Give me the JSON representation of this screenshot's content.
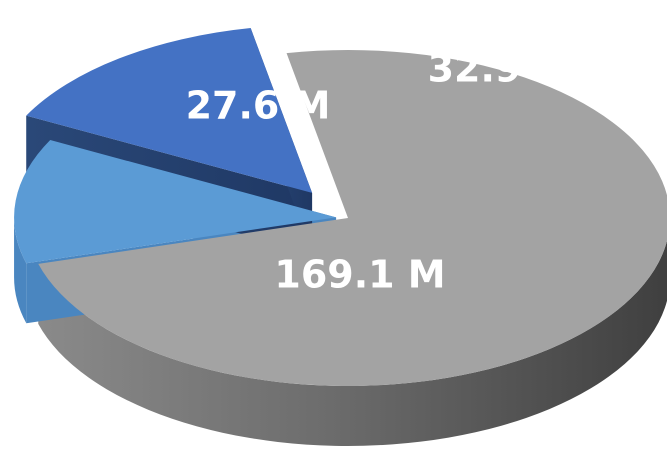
{
  "chart_data": {
    "type": "pie",
    "style": "3d-exploded",
    "categories": [
      "",
      "",
      ""
    ],
    "values": [
      169.1,
      27.6,
      32.9
    ],
    "labels": [
      "169.1 M",
      "27.6 M",
      "32.9 M"
    ],
    "unit": "M",
    "colors": [
      "#a3a3a3",
      "#5b9bd5",
      "#4472c4"
    ],
    "title": "",
    "legend": "none"
  }
}
